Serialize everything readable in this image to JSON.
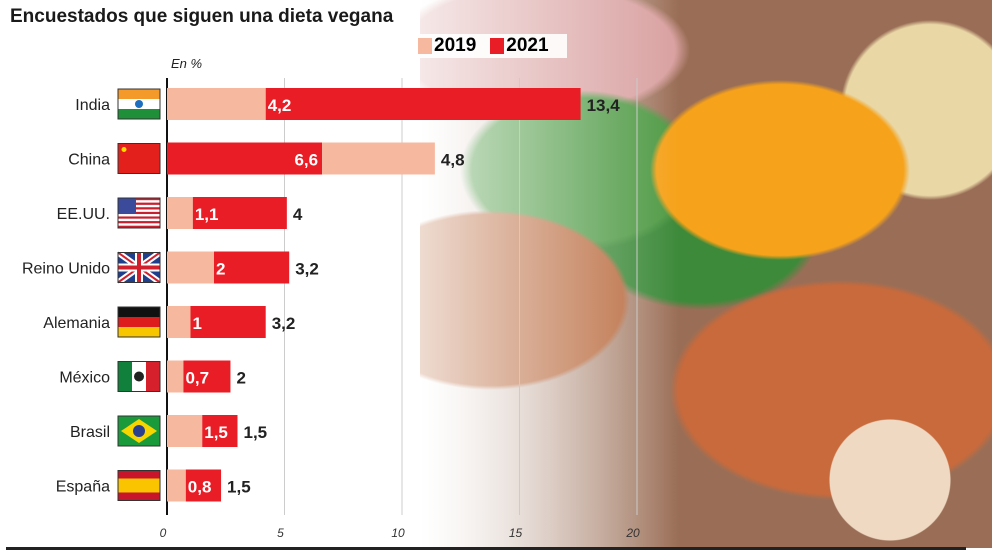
{
  "chart_data": {
    "type": "bar",
    "orientation": "horizontal",
    "stacked": true,
    "title": "Encuestados que siguen una dieta vegana",
    "unit_label": "En %",
    "legend": [
      {
        "name": "2019",
        "color": "#f7b8a0"
      },
      {
        "name": "2021",
        "color": "#e81d25"
      }
    ],
    "legend_placement": "top-right",
    "xlim": [
      0,
      20
    ],
    "xticks": [
      "0",
      "5",
      "10",
      "15",
      "20"
    ],
    "grid": true,
    "rows": [
      {
        "country": "India",
        "flag": "india-flag",
        "segments": [
          {
            "series": "2019",
            "value": 4.2,
            "label": "4,2"
          },
          {
            "series": "2021",
            "value": 13.4,
            "label": "13,4"
          }
        ]
      },
      {
        "country": "China",
        "flag": "china-flag",
        "segments": [
          {
            "series": "2021",
            "value": 6.6,
            "label": "6,6"
          },
          {
            "series": "2019",
            "value": 4.8,
            "label": "4,8"
          }
        ]
      },
      {
        "country": "EE.UU.",
        "flag": "usa-flag",
        "segments": [
          {
            "series": "2019",
            "value": 1.1,
            "label": "1,1"
          },
          {
            "series": "2021",
            "value": 4,
            "label": "4"
          }
        ]
      },
      {
        "country": "Reino Unido",
        "flag": "uk-flag",
        "segments": [
          {
            "series": "2019",
            "value": 2,
            "label": "2"
          },
          {
            "series": "2021",
            "value": 3.2,
            "label": "3,2"
          }
        ]
      },
      {
        "country": "Alemania",
        "flag": "germany-flag",
        "segments": [
          {
            "series": "2019",
            "value": 1,
            "label": "1"
          },
          {
            "series": "2021",
            "value": 3.2,
            "label": "3,2"
          }
        ]
      },
      {
        "country": "México",
        "flag": "mexico-flag",
        "segments": [
          {
            "series": "2019",
            "value": 0.7,
            "label": "0,7"
          },
          {
            "series": "2021",
            "value": 2,
            "label": "2"
          }
        ]
      },
      {
        "country": "Brasil",
        "flag": "brazil-flag",
        "segments": [
          {
            "series": "2019",
            "value": 1.5,
            "label": "1,5"
          },
          {
            "series": "2021",
            "value": 1.5,
            "label": "1,5"
          }
        ]
      },
      {
        "country": "España",
        "flag": "spain-flag",
        "segments": [
          {
            "series": "2019",
            "value": 0.8,
            "label": "0,8"
          },
          {
            "series": "2021",
            "value": 1.5,
            "label": "1,5"
          }
        ]
      }
    ]
  }
}
